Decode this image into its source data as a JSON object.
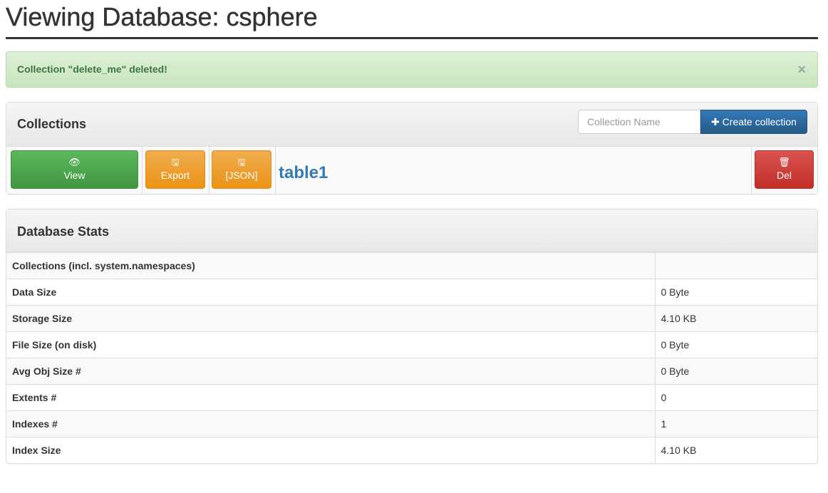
{
  "page": {
    "title": "Viewing Database: csphere"
  },
  "alert": {
    "message": "Collection \"delete_me\" deleted!",
    "close": "×"
  },
  "collections": {
    "title": "Collections",
    "name_placeholder": "Collection Name",
    "create_label": "Create collection",
    "items": [
      {
        "name": "table1",
        "view": "View",
        "export": "Export",
        "json": "[JSON]",
        "del": "Del"
      }
    ]
  },
  "stats": {
    "title": "Database Stats",
    "rows": [
      {
        "label": "Collections (incl. system.namespaces)",
        "value": ""
      },
      {
        "label": "Data Size",
        "value": "0 Byte"
      },
      {
        "label": "Storage Size",
        "value": "4.10 KB"
      },
      {
        "label": "File Size (on disk)",
        "value": "0 Byte"
      },
      {
        "label": "Avg Obj Size #",
        "value": "0 Byte"
      },
      {
        "label": "Extents #",
        "value": "0"
      },
      {
        "label": "Indexes #",
        "value": "1"
      },
      {
        "label": "Index Size",
        "value": "4.10 KB"
      }
    ]
  }
}
